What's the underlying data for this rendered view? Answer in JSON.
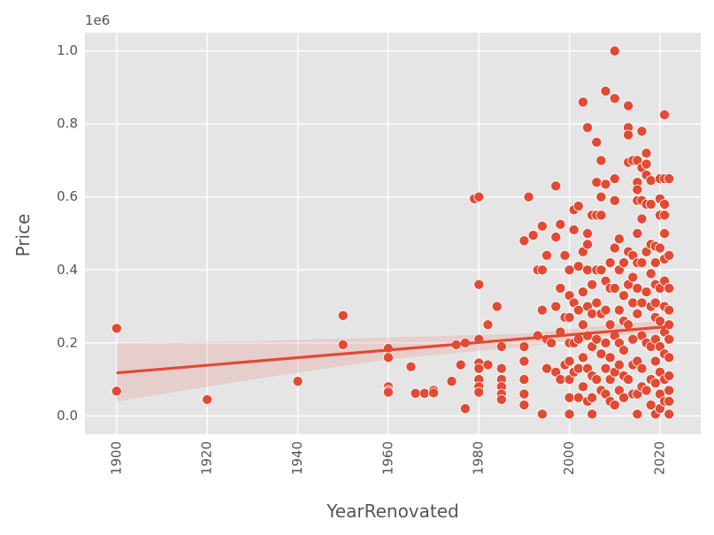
{
  "chart_data": {
    "type": "scatter",
    "style": "ggplot",
    "xlabel": "YearRenovated",
    "ylabel": "Price",
    "y_offset_label": "1e6",
    "xlim": [
      1893,
      2029
    ],
    "ylim": [
      -0.05,
      1.05
    ],
    "x_ticks": [
      1900,
      1920,
      1940,
      1960,
      1980,
      2000,
      2020
    ],
    "x_tick_labels": [
      "1900",
      "1920",
      "1940",
      "1960",
      "1980",
      "2000",
      "2020"
    ],
    "y_ticks": [
      0.0,
      0.2,
      0.4,
      0.6,
      0.8,
      1.0
    ],
    "y_tick_labels": [
      "0.0",
      "0.2",
      "0.4",
      "0.6",
      "0.8",
      "1.0"
    ],
    "grid": true,
    "colors": {
      "points": "#E24A33",
      "regression": "#E24A33",
      "band": "#E24A33",
      "panel": "#E5E5E5",
      "grid": "#FFFFFF"
    },
    "regression": {
      "x": [
        1900,
        2022
      ],
      "y": [
        0.118,
        0.245
      ]
    },
    "confidence_band": {
      "x": [
        1900,
        1930,
        1960,
        1990,
        2010,
        2022
      ],
      "upper": [
        0.2,
        0.205,
        0.215,
        0.225,
        0.25,
        0.262
      ],
      "lower": [
        0.04,
        0.1,
        0.155,
        0.19,
        0.222,
        0.228
      ]
    },
    "points": {
      "x": [
        1900,
        1900,
        1920,
        1940,
        1950,
        1950,
        1960,
        1960,
        1960,
        1960,
        1960,
        1965,
        1966,
        1968,
        1970,
        1970,
        1974,
        1975,
        1976,
        1977,
        1977,
        1979,
        1980,
        1980,
        1980,
        1980,
        1980,
        1980,
        1980,
        1980,
        1982,
        1982,
        1984,
        1985,
        1985,
        1985,
        1985,
        1985,
        1985,
        1990,
        1990,
        1990,
        1990,
        1990,
        1990,
        1991,
        1992,
        1993,
        1993,
        1994,
        1994,
        1994,
        1994,
        1995,
        1995,
        1995,
        1996,
        1997,
        1997,
        1997,
        1997,
        1998,
        1998,
        1998,
        1998,
        1999,
        1999,
        1999,
        2000,
        2000,
        2000,
        2000,
        2000,
        2000,
        2000,
        2000,
        2001,
        2001,
        2001,
        2001,
        2001,
        2002,
        2002,
        2002,
        2002,
        2002,
        2002,
        2003,
        2003,
        2003,
        2003,
        2003,
        2003,
        2004,
        2004,
        2004,
        2004,
        2004,
        2004,
        2004,
        2004,
        2005,
        2005,
        2005,
        2005,
        2005,
        2005,
        2005,
        2006,
        2006,
        2006,
        2006,
        2006,
        2006,
        2006,
        2007,
        2007,
        2007,
        2007,
        2007,
        2007,
        2007,
        2008,
        2008,
        2008,
        2008,
        2008,
        2008,
        2008,
        2009,
        2009,
        2009,
        2009,
        2009,
        2009,
        2010,
        2010,
        2010,
        2010,
        2010,
        2010,
        2010,
        2010,
        2010,
        2011,
        2011,
        2011,
        2011,
        2011,
        2011,
        2012,
        2012,
        2012,
        2012,
        2012,
        2012,
        2013,
        2013,
        2013,
        2013,
        2013,
        2013,
        2013,
        2013,
        2014,
        2014,
        2014,
        2014,
        2014,
        2014,
        2014,
        2015,
        2015,
        2015,
        2015,
        2015,
        2015,
        2015,
        2015,
        2015,
        2015,
        2015,
        2016,
        2016,
        2016,
        2016,
        2016,
        2016,
        2016,
        2016,
        2016,
        2017,
        2017,
        2017,
        2017,
        2017,
        2017,
        2017,
        2017,
        2018,
        2018,
        2018,
        2018,
        2018,
        2018,
        2018,
        2018,
        2019,
        2019,
        2019,
        2019,
        2019,
        2019,
        2019,
        2019,
        2019,
        2020,
        2020,
        2020,
        2020,
        2020,
        2020,
        2020,
        2020,
        2020,
        2020,
        2021,
        2021,
        2021,
        2021,
        2021,
        2021,
        2021,
        2021,
        2021,
        2021,
        2021,
        2021,
        2022,
        2022,
        2022,
        2022,
        2022,
        2022,
        2022,
        2022,
        2022,
        2022,
        2022
      ],
      "y": [
        0.24,
        0.068,
        0.045,
        0.095,
        0.275,
        0.195,
        0.185,
        0.16,
        0.08,
        0.07,
        0.065,
        0.135,
        0.062,
        0.062,
        0.07,
        0.063,
        0.095,
        0.195,
        0.14,
        0.2,
        0.02,
        0.595,
        0.6,
        0.36,
        0.21,
        0.145,
        0.13,
        0.1,
        0.08,
        0.065,
        0.25,
        0.14,
        0.3,
        0.19,
        0.13,
        0.1,
        0.08,
        0.06,
        0.045,
        0.48,
        0.19,
        0.15,
        0.1,
        0.06,
        0.03,
        0.6,
        0.495,
        0.4,
        0.22,
        0.52,
        0.4,
        0.29,
        0.005,
        0.44,
        0.21,
        0.13,
        0.2,
        0.63,
        0.49,
        0.3,
        0.12,
        0.525,
        0.35,
        0.23,
        0.1,
        0.44,
        0.27,
        0.14,
        0.4,
        0.33,
        0.27,
        0.2,
        0.15,
        0.1,
        0.05,
        0.005,
        0.565,
        0.51,
        0.31,
        0.2,
        0.12,
        0.575,
        0.41,
        0.29,
        0.21,
        0.13,
        0.05,
        0.86,
        0.45,
        0.34,
        0.25,
        0.16,
        0.08,
        0.79,
        0.5,
        0.47,
        0.4,
        0.3,
        0.22,
        0.13,
        0.04,
        0.55,
        0.36,
        0.28,
        0.19,
        0.11,
        0.05,
        0.005,
        0.75,
        0.64,
        0.55,
        0.4,
        0.31,
        0.21,
        0.1,
        0.7,
        0.6,
        0.55,
        0.4,
        0.28,
        0.17,
        0.07,
        0.89,
        0.635,
        0.37,
        0.29,
        0.2,
        0.13,
        0.06,
        0.42,
        0.35,
        0.25,
        0.16,
        0.1,
        0.04,
        1.0,
        0.87,
        0.65,
        0.59,
        0.46,
        0.35,
        0.22,
        0.12,
        0.03,
        0.485,
        0.4,
        0.29,
        0.2,
        0.14,
        0.07,
        0.42,
        0.33,
        0.26,
        0.18,
        0.11,
        0.05,
        0.85,
        0.79,
        0.77,
        0.695,
        0.45,
        0.36,
        0.25,
        0.1,
        0.7,
        0.44,
        0.38,
        0.31,
        0.21,
        0.14,
        0.06,
        0.7,
        0.64,
        0.62,
        0.59,
        0.5,
        0.42,
        0.35,
        0.28,
        0.15,
        0.06,
        0.005,
        0.78,
        0.68,
        0.59,
        0.54,
        0.42,
        0.31,
        0.22,
        0.13,
        0.08,
        0.72,
        0.69,
        0.66,
        0.58,
        0.45,
        0.34,
        0.2,
        0.07,
        0.645,
        0.58,
        0.47,
        0.39,
        0.3,
        0.19,
        0.1,
        0.03,
        0.465,
        0.42,
        0.36,
        0.31,
        0.27,
        0.21,
        0.15,
        0.09,
        0.005,
        0.65,
        0.595,
        0.55,
        0.46,
        0.35,
        0.26,
        0.19,
        0.12,
        0.06,
        0.02,
        0.825,
        0.65,
        0.58,
        0.55,
        0.5,
        0.43,
        0.37,
        0.3,
        0.23,
        0.17,
        0.1,
        0.04,
        0.65,
        0.44,
        0.35,
        0.29,
        0.25,
        0.21,
        0.16,
        0.11,
        0.07,
        0.04,
        0.005
      ]
    }
  }
}
